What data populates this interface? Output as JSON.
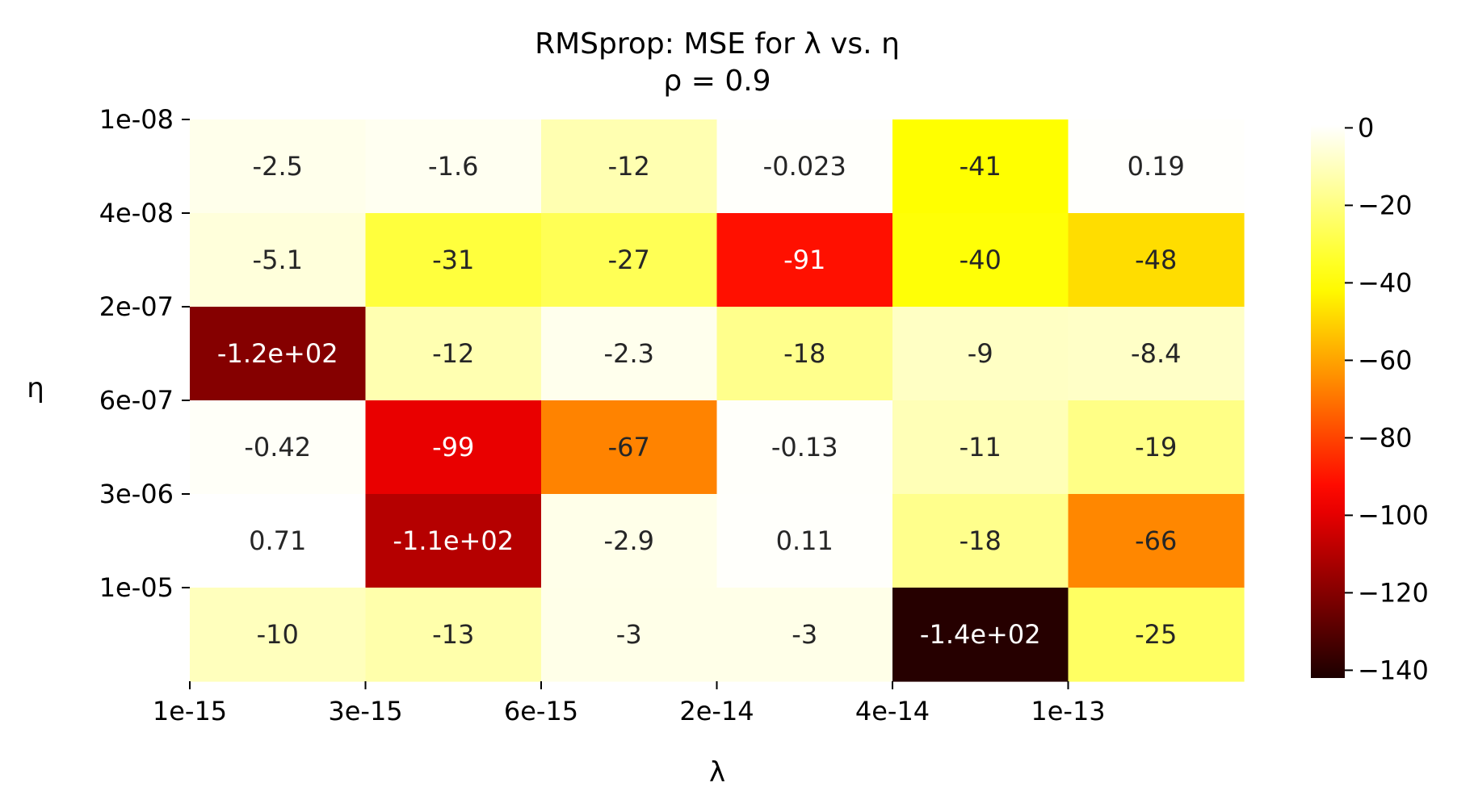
{
  "chart_data": {
    "type": "heatmap",
    "title": "RMSprop: MSE for λ vs. η",
    "subtitle": "ρ = 0.9",
    "xlabel": "λ",
    "ylabel": "η",
    "x_tick_labels": [
      "1e-15",
      "3e-15",
      "6e-15",
      "2e-14",
      "4e-14",
      "1e-13"
    ],
    "y_tick_labels": [
      "1e-08",
      "4e-08",
      "2e-07",
      "6e-07",
      "3e-06",
      "1e-05"
    ],
    "values": [
      [
        -2.5,
        -1.6,
        -12,
        -0.023,
        -41,
        0.19
      ],
      [
        -5.1,
        -31,
        -27,
        -91,
        -40,
        -48
      ],
      [
        -120,
        -12,
        -2.3,
        -18,
        -9,
        -8.4
      ],
      [
        -0.42,
        -99,
        -67,
        -0.13,
        -11,
        -19
      ],
      [
        0.71,
        -110,
        -2.9,
        0.11,
        -18,
        -66
      ],
      [
        -10,
        -13,
        -3,
        -3,
        -140,
        -25
      ]
    ],
    "annotations": [
      [
        "-2.5",
        "-1.6",
        "-12",
        "-0.023",
        "-41",
        "0.19"
      ],
      [
        "-5.1",
        "-31",
        "-27",
        "-91",
        "-40",
        "-48"
      ],
      [
        "-1.2e+02",
        "-12",
        "-2.3",
        "-18",
        "-9",
        "-8.4"
      ],
      [
        "-0.42",
        "-99",
        "-67",
        "-0.13",
        "-11",
        "-19"
      ],
      [
        "0.71",
        "-1.1e+02",
        "-2.9",
        "0.11",
        "-18",
        "-66"
      ],
      [
        "-10",
        "-13",
        "-3",
        "-3",
        "-1.4e+02",
        "-25"
      ]
    ],
    "colormap": "hot",
    "color_range": [
      -142,
      0.71
    ],
    "colorbar_ticks": [
      0,
      -20,
      -40,
      -60,
      -80,
      -100,
      -120,
      -140
    ],
    "colorbar_tick_labels": [
      "0",
      "−20",
      "−40",
      "−60",
      "−80",
      "−100",
      "−120",
      "−140"
    ],
    "grid": false
  }
}
